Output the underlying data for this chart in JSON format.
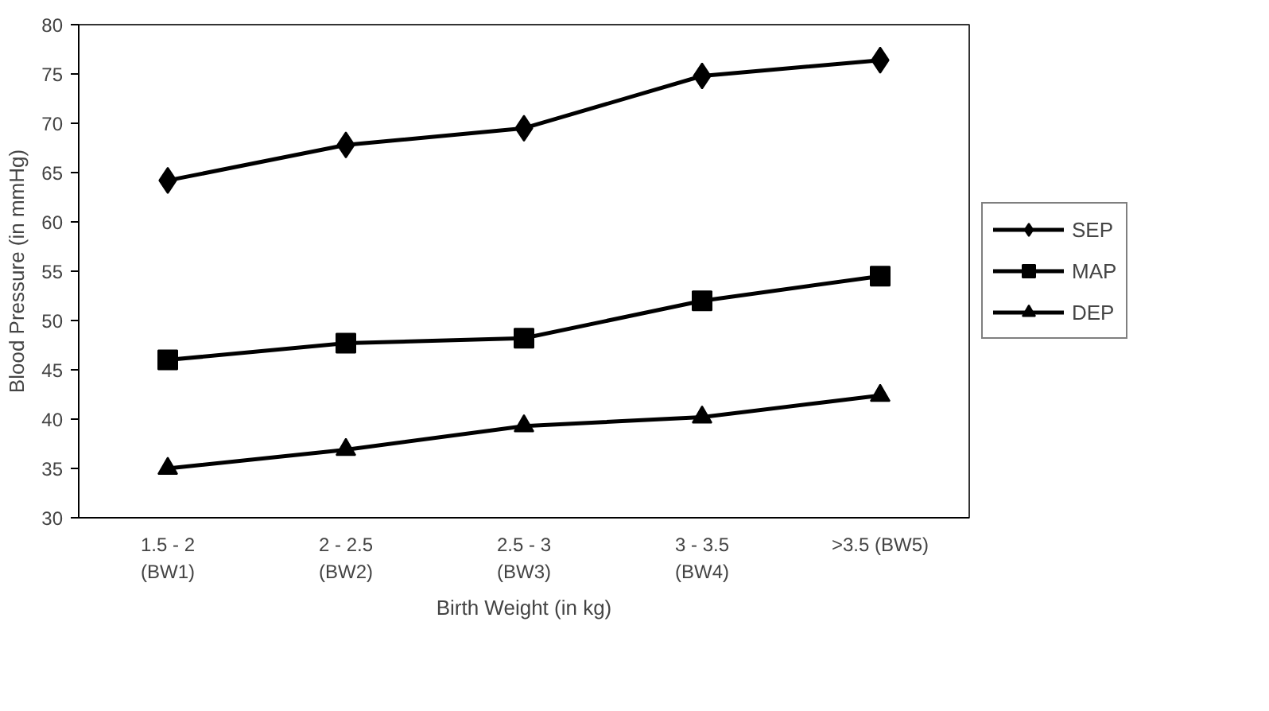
{
  "chart_data": {
    "type": "line",
    "xlabel": "Birth Weight (in kg)",
    "ylabel": "Blood Pressure (in mmHg)",
    "categories": [
      "1.5 - 2\n(BW1)",
      "2 - 2.5\n(BW2)",
      "2.5 - 3\n(BW3)",
      "3 - 3.5\n(BW4)",
      ">3.5 (BW5)"
    ],
    "series": [
      {
        "name": "SEP",
        "color": "#000000",
        "marker": "diamond",
        "values": [
          64.2,
          67.8,
          69.5,
          74.8,
          76.4
        ]
      },
      {
        "name": "MAP",
        "color": "#000000",
        "marker": "square",
        "values": [
          46,
          47.7,
          48.2,
          52,
          54.5
        ]
      },
      {
        "name": "DEP",
        "color": "#000000",
        "marker": "triangle",
        "values": [
          35,
          36.9,
          39.3,
          40.2,
          42.4
        ]
      }
    ],
    "ylim": [
      30,
      80
    ],
    "yticks": [
      30,
      35,
      40,
      45,
      50,
      55,
      60,
      65,
      70,
      75,
      80
    ],
    "grid": false,
    "legend": "right",
    "line_style": "solid"
  }
}
